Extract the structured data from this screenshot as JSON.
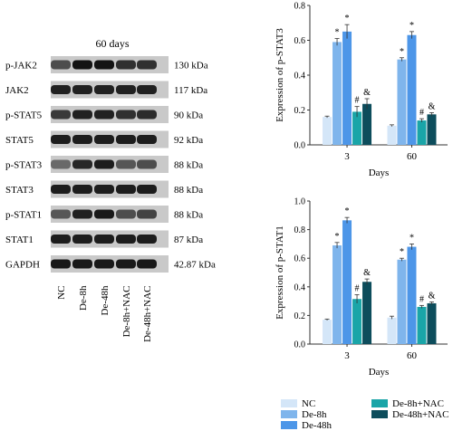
{
  "colors": {
    "NC": "#d4e6f8",
    "De-8h": "#7fb5ec",
    "De-48h": "#4d96e8",
    "De-8h+NAC": "#1aa5a8",
    "De-48h+NAC": "#0d4d5c"
  },
  "blot": {
    "title": "60 days",
    "rows": [
      {
        "label": "p-JAK2",
        "kda": "130 kDa",
        "intensity": [
          0.65,
          0.95,
          0.95,
          0.8,
          0.8
        ]
      },
      {
        "label": "JAK2",
        "kda": "117 kDa",
        "intensity": [
          0.88,
          0.88,
          0.88,
          0.88,
          0.88
        ]
      },
      {
        "label": "p-STAT5",
        "kda": "90 kDa",
        "intensity": [
          0.75,
          0.88,
          0.88,
          0.8,
          0.82
        ]
      },
      {
        "label": "STAT5",
        "kda": "92 kDa",
        "intensity": [
          0.9,
          0.9,
          0.9,
          0.9,
          0.9
        ]
      },
      {
        "label": "p-STAT3",
        "kda": "88 kDa",
        "intensity": [
          0.5,
          0.85,
          0.9,
          0.6,
          0.65
        ]
      },
      {
        "label": "STAT3",
        "kda": "88 kDa",
        "intensity": [
          0.9,
          0.9,
          0.9,
          0.9,
          0.9
        ]
      },
      {
        "label": "p-STAT1",
        "kda": "88 kDa",
        "intensity": [
          0.6,
          0.88,
          0.92,
          0.65,
          0.7
        ]
      },
      {
        "label": "STAT1",
        "kda": "87 kDa",
        "intensity": [
          0.9,
          0.9,
          0.9,
          0.9,
          0.9
        ]
      },
      {
        "label": "GAPDH",
        "kda": "42.87 kDa",
        "intensity": [
          0.92,
          0.92,
          0.92,
          0.92,
          0.92
        ]
      }
    ],
    "lanes": [
      "NC",
      "De-8h",
      "De-48h",
      "De-8h+NAC",
      "De-48h+NAC"
    ]
  },
  "chart_data": [
    {
      "type": "bar",
      "ylabel": "Expression of p-STAT3",
      "xlabel": "Days",
      "categories": [
        "3",
        "60"
      ],
      "ylim": [
        0,
        0.8
      ],
      "yticks": [
        "0.0",
        "0.2",
        "0.4",
        "0.6",
        "0.8"
      ],
      "series": [
        {
          "name": "NC",
          "values": [
            0.16,
            0.11
          ],
          "errors": [
            0.005,
            0.005
          ],
          "marks": [
            "",
            ""
          ]
        },
        {
          "name": "De-8h",
          "values": [
            0.59,
            0.49
          ],
          "errors": [
            0.02,
            0.01
          ],
          "marks": [
            "*",
            "*"
          ]
        },
        {
          "name": "De-48h",
          "values": [
            0.65,
            0.63
          ],
          "errors": [
            0.04,
            0.02
          ],
          "marks": [
            "*",
            "*"
          ]
        },
        {
          "name": "De-8h+NAC",
          "values": [
            0.19,
            0.14
          ],
          "errors": [
            0.03,
            0.01
          ],
          "marks": [
            "#",
            "#"
          ]
        },
        {
          "name": "De-48h+NAC",
          "values": [
            0.235,
            0.175
          ],
          "errors": [
            0.03,
            0.01
          ],
          "marks": [
            "&",
            "&"
          ]
        }
      ]
    },
    {
      "type": "bar",
      "ylabel": "Expression of p-STAT1",
      "xlabel": "Days",
      "categories": [
        "3",
        "60"
      ],
      "ylim": [
        0,
        1.0
      ],
      "yticks": [
        "0.0",
        "0.2",
        "0.4",
        "0.6",
        "0.8",
        "1.0"
      ],
      "series": [
        {
          "name": "NC",
          "values": [
            0.17,
            0.185
          ],
          "errors": [
            0.005,
            0.01
          ],
          "marks": [
            "",
            ""
          ]
        },
        {
          "name": "De-8h",
          "values": [
            0.69,
            0.59
          ],
          "errors": [
            0.02,
            0.01
          ],
          "marks": [
            "*",
            "*"
          ]
        },
        {
          "name": "De-48h",
          "values": [
            0.865,
            0.68
          ],
          "errors": [
            0.02,
            0.02
          ],
          "marks": [
            "*",
            "*"
          ]
        },
        {
          "name": "De-8h+NAC",
          "values": [
            0.315,
            0.26
          ],
          "errors": [
            0.03,
            0.01
          ],
          "marks": [
            "#",
            "#"
          ]
        },
        {
          "name": "De-48h+NAC",
          "values": [
            0.435,
            0.285
          ],
          "errors": [
            0.02,
            0.01
          ],
          "marks": [
            "&",
            "&"
          ]
        }
      ]
    }
  ],
  "legend": [
    "NC",
    "De-8h",
    "De-48h",
    "De-8h+NAC",
    "De-48h+NAC"
  ]
}
